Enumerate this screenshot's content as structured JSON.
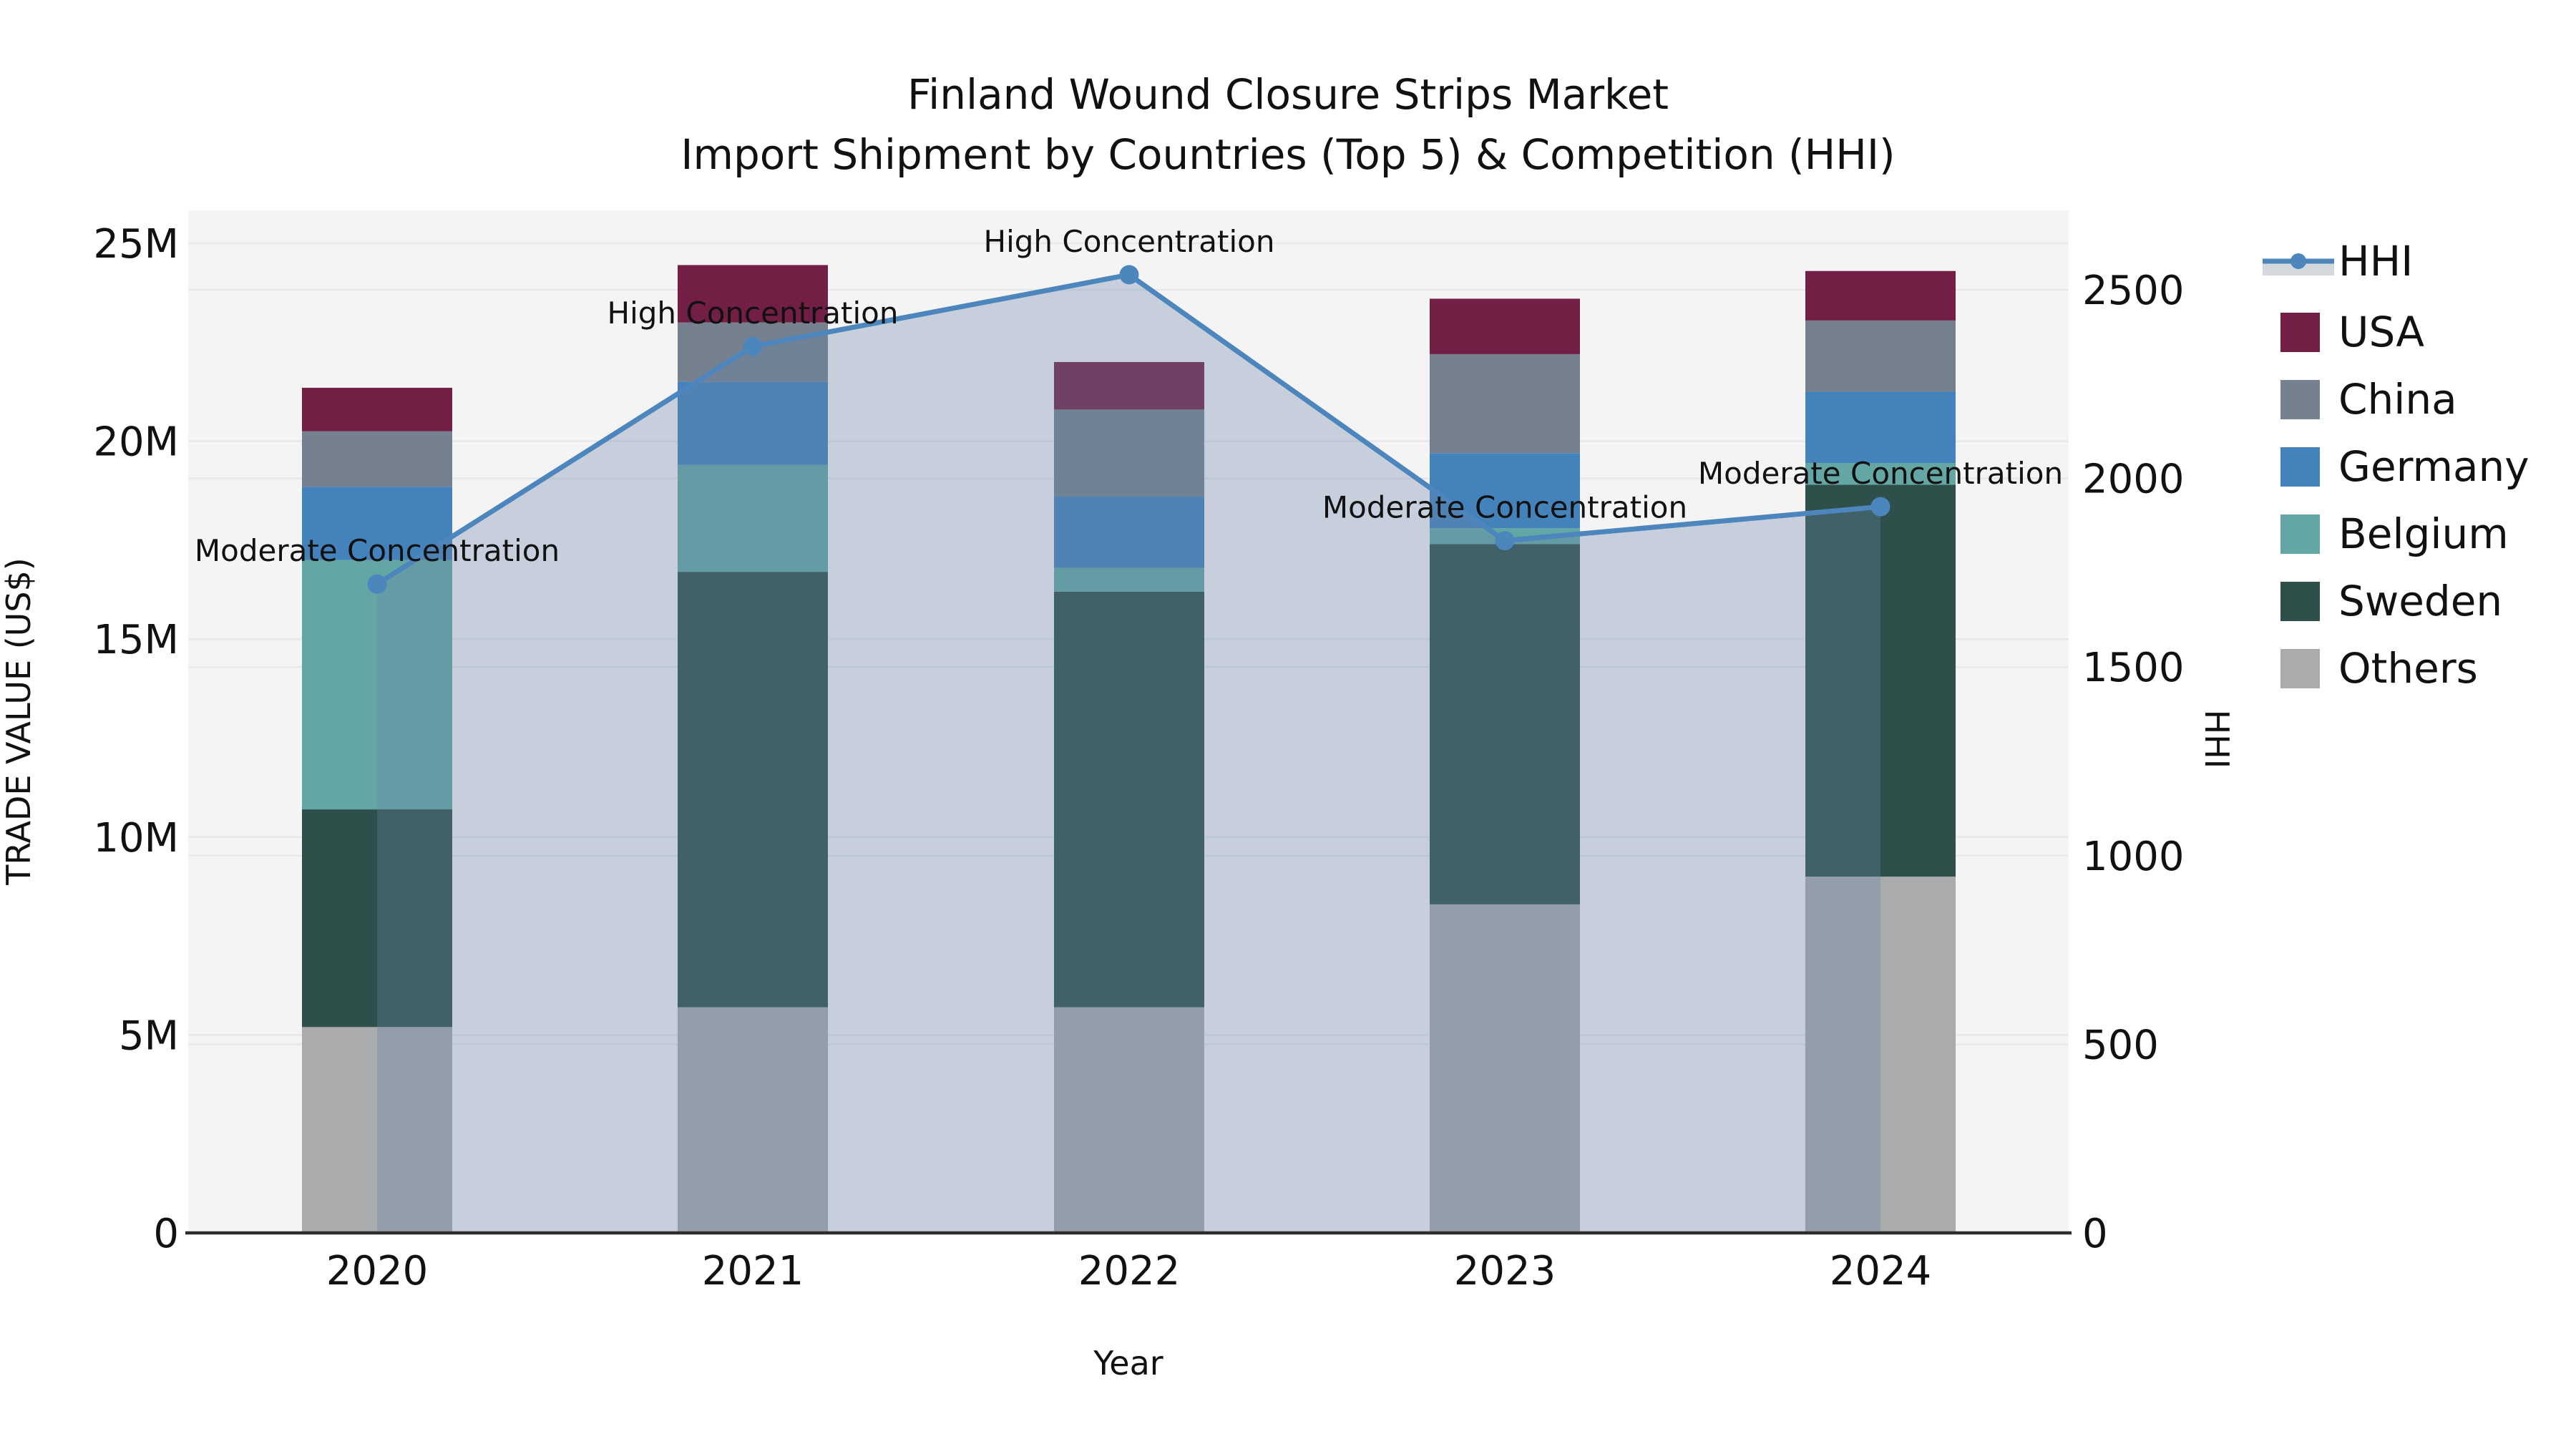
{
  "title": {
    "line1": "Finland Wound Closure Strips Market",
    "line2": "Import Shipment by Countries (Top 5) & Competition (HHI)"
  },
  "axes": {
    "y_label": "TRADE VALUE (US$)",
    "y2_label": "HHI",
    "x_label": "Year",
    "y_ticks": [
      "0",
      "5M",
      "10M",
      "15M",
      "20M",
      "25M"
    ],
    "y_tick_values": [
      0,
      5,
      10,
      15,
      20,
      25
    ],
    "y2_ticks": [
      "0",
      "500",
      "1000",
      "1500",
      "2000",
      "2500"
    ],
    "y2_tick_values": [
      0,
      500,
      1000,
      1500,
      2000,
      2500
    ],
    "x_ticks": [
      "2020",
      "2021",
      "2022",
      "2023",
      "2024"
    ]
  },
  "legend": {
    "items": [
      {
        "label": "HHI",
        "type": "line",
        "color": "#4d85bd"
      },
      {
        "label": "USA",
        "type": "swatch",
        "color": "#731f45"
      },
      {
        "label": "China",
        "type": "swatch",
        "color": "#75818f"
      },
      {
        "label": "Germany",
        "type": "swatch",
        "color": "#4382bb"
      },
      {
        "label": "Belgium",
        "type": "swatch",
        "color": "#63a6a3"
      },
      {
        "label": "Sweden",
        "type": "swatch",
        "color": "#2e4f4a"
      },
      {
        "label": "Others",
        "type": "swatch",
        "color": "#a9abac"
      }
    ]
  },
  "colors": {
    "plot_bg": "#f4f4f5",
    "grid": "#e8e8ea",
    "axis_line": "#2d2d2d",
    "hhi_line": "#4d85bd",
    "hhi_fill": "rgba(107,135,167,0.33)",
    "legend_band": "#d4d7dc",
    "text": "#111111"
  },
  "chart_data": {
    "type": "bar",
    "subtype": "stacked-bars-with-line",
    "title": "Finland Wound Closure Strips Market — Import Shipment by Countries (Top 5) & Competition (HHI)",
    "xlabel": "Year",
    "ylabel": "TRADE VALUE (US$)",
    "y2label": "HHI",
    "ylim_millions": [
      0,
      25
    ],
    "y2lim": [
      0,
      2500
    ],
    "grid": true,
    "legend_position": "right",
    "categories": [
      "2020",
      "2021",
      "2022",
      "2023",
      "2024"
    ],
    "series": [
      {
        "name": "Others",
        "unit": "USD millions",
        "values": [
          5.2,
          5.7,
          5.7,
          8.3,
          9.0
        ]
      },
      {
        "name": "Sweden",
        "unit": "USD millions",
        "values": [
          5.5,
          11.0,
          10.5,
          9.1,
          9.9
        ]
      },
      {
        "name": "Belgium",
        "unit": "USD millions",
        "values": [
          6.3,
          2.7,
          0.6,
          0.4,
          0.55
        ]
      },
      {
        "name": "Germany",
        "unit": "USD millions",
        "values": [
          1.85,
          2.1,
          1.8,
          1.9,
          1.8
        ]
      },
      {
        "name": "China",
        "unit": "USD millions",
        "values": [
          1.4,
          1.5,
          2.2,
          2.5,
          1.8
        ]
      },
      {
        "name": "USA",
        "unit": "USD millions",
        "values": [
          1.1,
          1.45,
          1.2,
          1.4,
          1.25
        ]
      }
    ],
    "stack_order_bottom_to_top": [
      "Others",
      "Sweden",
      "Belgium",
      "Germany",
      "China",
      "USA"
    ],
    "totals_millions": [
      21.35,
      24.45,
      22.0,
      23.6,
      24.3
    ],
    "hhi_line": {
      "name": "HHI",
      "values": [
        1720,
        2350,
        2540,
        1835,
        1925
      ],
      "area_fill_under_line": true
    },
    "annotations": [
      {
        "x": "2020",
        "label": "Moderate Concentration"
      },
      {
        "x": "2021",
        "label": "High Concentration"
      },
      {
        "x": "2022",
        "label": "High Concentration"
      },
      {
        "x": "2023",
        "label": "Moderate Concentration"
      },
      {
        "x": "2024",
        "label": "Moderate Concentration"
      }
    ]
  }
}
